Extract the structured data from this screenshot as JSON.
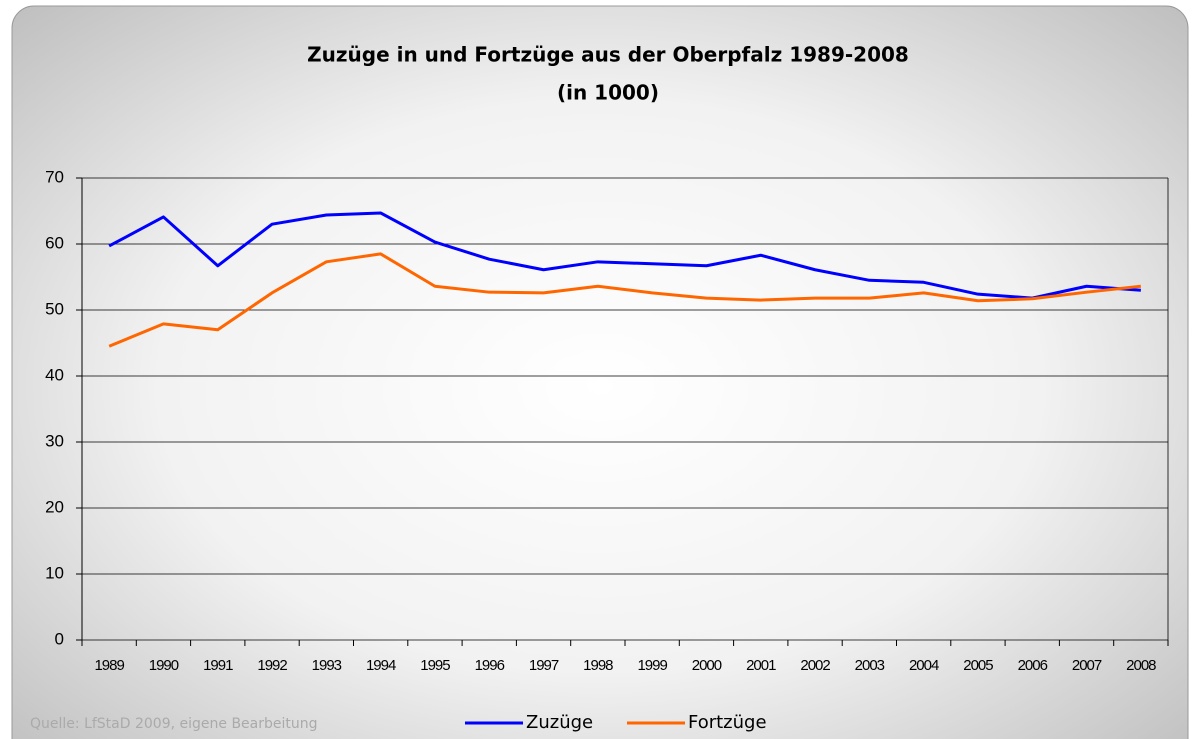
{
  "chart_data": {
    "type": "line",
    "title": "Zuzüge in und Fortzüge aus der Oberpfalz 1989-2008",
    "subtitle": "(in 1000)",
    "source": "Quelle: LfStaD 2009, eigene Bearbeitung",
    "categories": [
      "1989",
      "1990",
      "1991",
      "1992",
      "1993",
      "1994",
      "1995",
      "1996",
      "1997",
      "1998",
      "1999",
      "2000",
      "2001",
      "2002",
      "2003",
      "2004",
      "2005",
      "2006",
      "2007",
      "2008"
    ],
    "series": [
      {
        "name": "Zuzüge",
        "color": "#0000ff",
        "values": [
          59.7,
          64.1,
          56.7,
          63.0,
          64.4,
          64.7,
          60.3,
          57.7,
          56.1,
          57.3,
          57.0,
          56.7,
          58.3,
          56.1,
          54.5,
          54.2,
          52.4,
          51.8,
          53.6,
          53.0
        ]
      },
      {
        "name": "Fortzüge",
        "color": "#ff6600",
        "values": [
          44.5,
          47.9,
          47.0,
          52.6,
          57.3,
          58.5,
          53.6,
          52.7,
          52.6,
          53.6,
          52.6,
          51.8,
          51.5,
          51.8,
          51.8,
          52.6,
          51.4,
          51.7,
          52.7,
          53.6
        ]
      }
    ],
    "ylim": [
      0,
      70
    ],
    "yticks": [
      0,
      10,
      20,
      30,
      40,
      50,
      60,
      70
    ],
    "grid": true
  }
}
